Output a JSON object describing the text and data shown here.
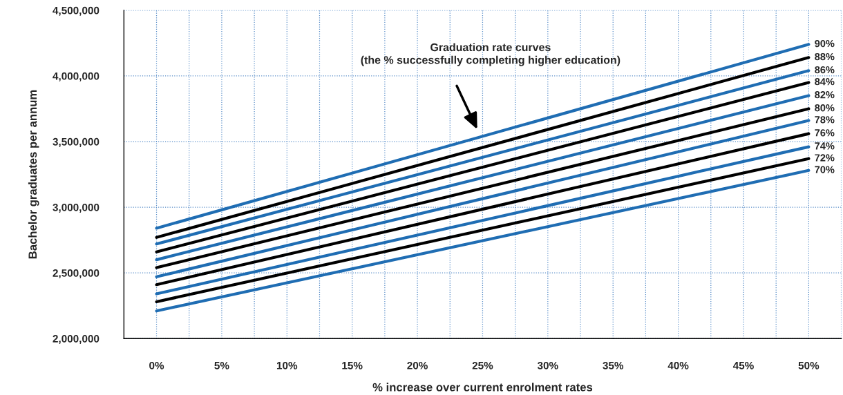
{
  "chart_data": {
    "type": "line",
    "xlabel": "% increase over current enrolment rates",
    "ylabel": "Bachelor graduates per annum",
    "x": [
      0,
      50
    ],
    "series": [
      {
        "name": "90%",
        "color": "#1f6db3",
        "values": [
          2840000,
          4240000
        ]
      },
      {
        "name": "88%",
        "color": "#000000",
        "values": [
          2770000,
          4140000
        ]
      },
      {
        "name": "86%",
        "color": "#1f6db3",
        "values": [
          2720000,
          4040000
        ]
      },
      {
        "name": "84%",
        "color": "#000000",
        "values": [
          2660000,
          3950000
        ]
      },
      {
        "name": "82%",
        "color": "#1f6db3",
        "values": [
          2600000,
          3850000
        ]
      },
      {
        "name": "80%",
        "color": "#000000",
        "values": [
          2540000,
          3750000
        ]
      },
      {
        "name": "78%",
        "color": "#1f6db3",
        "values": [
          2470000,
          3660000
        ]
      },
      {
        "name": "76%",
        "color": "#000000",
        "values": [
          2410000,
          3560000
        ]
      },
      {
        "name": "74%",
        "color": "#1f6db3",
        "values": [
          2340000,
          3460000
        ]
      },
      {
        "name": "72%",
        "color": "#000000",
        "values": [
          2280000,
          3370000
        ]
      },
      {
        "name": "70%",
        "color": "#1f6db3",
        "values": [
          2210000,
          3280000
        ]
      }
    ],
    "xlim": [
      -2.5,
      52.5
    ],
    "xticks": [
      {
        "value": 0,
        "label": "0%"
      },
      {
        "value": 2.5,
        "label": null
      },
      {
        "value": 5,
        "label": "5%"
      },
      {
        "value": 7.5,
        "label": null
      },
      {
        "value": 10,
        "label": "10%"
      },
      {
        "value": 12.5,
        "label": null
      },
      {
        "value": 15,
        "label": "15%"
      },
      {
        "value": 17.5,
        "label": null
      },
      {
        "value": 20,
        "label": "20%"
      },
      {
        "value": 22.5,
        "label": null
      },
      {
        "value": 25,
        "label": "25%"
      },
      {
        "value": 27.5,
        "label": null
      },
      {
        "value": 30,
        "label": "30%"
      },
      {
        "value": 32.5,
        "label": null
      },
      {
        "value": 35,
        "label": "35%"
      },
      {
        "value": 37.5,
        "label": null
      },
      {
        "value": 40,
        "label": "40%"
      },
      {
        "value": 42.5,
        "label": null
      },
      {
        "value": 45,
        "label": "45%"
      },
      {
        "value": 47.5,
        "label": null
      },
      {
        "value": 50,
        "label": "50%"
      },
      {
        "value": 52.5,
        "label": null
      }
    ],
    "ylim": [
      2000000,
      4500000
    ],
    "yticks": [
      {
        "value": 2000000,
        "label": "2,000,000"
      },
      {
        "value": 2500000,
        "label": "2,500,000"
      },
      {
        "value": 3000000,
        "label": "3,000,000"
      },
      {
        "value": 3500000,
        "label": "3,500,000"
      },
      {
        "value": 4000000,
        "label": "4,000,000"
      },
      {
        "value": 4500000,
        "label": "4,500,000"
      }
    ],
    "grid": true,
    "legend": false,
    "marker": "none",
    "line_style": "solid",
    "annotations": [
      "Graduation rate curves\n(the % successfully completing higher education)"
    ]
  }
}
